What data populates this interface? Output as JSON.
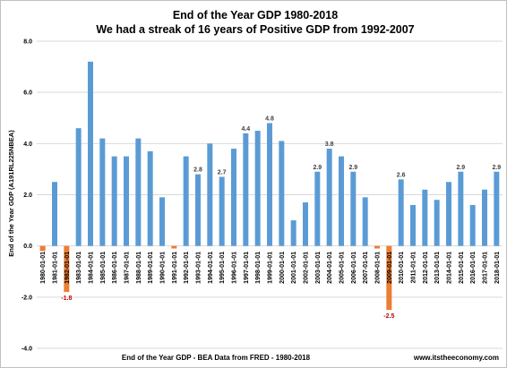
{
  "chart_data": {
    "type": "bar",
    "title": "End of the Year GDP 1980-2018",
    "subtitle": "We had a streak of 16 years of Positive GDP from 1992-2007",
    "ylabel": "End of the Year GDP (A191RL225NBEA)",
    "xlabel": "End of the Year GDP - BEA Data from FRED - 1980-2018",
    "footer_right": "www.itstheeconomy.com",
    "ylim": [
      -4.0,
      8.0
    ],
    "yticks": [
      "8.0",
      "6.0",
      "4.0",
      "2.0",
      "0.0",
      "-2.0",
      "-4.0"
    ],
    "grid": true,
    "legend": "none",
    "colors": {
      "positive": "#5b9bd5",
      "negative": "#ed7d31",
      "negative_label": "#c00000",
      "grid": "#d9d9d9"
    },
    "categories": [
      "1980-01-01",
      "1981-01-01",
      "1982-01-01",
      "1983-01-01",
      "1984-01-01",
      "1985-01-01",
      "1986-01-01",
      "1987-01-01",
      "1988-01-01",
      "1989-01-01",
      "1990-01-01",
      "1991-01-01",
      "1992-01-01",
      "1993-01-01",
      "1994-01-01",
      "1995-01-01",
      "1996-01-01",
      "1997-01-01",
      "1998-01-01",
      "1999-01-01",
      "2000-01-01",
      "2001-01-01",
      "2002-01-01",
      "2003-01-01",
      "2004-01-01",
      "2005-01-01",
      "2006-01-01",
      "2007-01-01",
      "2008-01-01",
      "2009-01-01",
      "2010-01-01",
      "2011-01-01",
      "2012-01-01",
      "2013-01-01",
      "2014-01-01",
      "2015-01-01",
      "2016-01-01",
      "2017-01-01",
      "2018-01-01"
    ],
    "values": [
      -0.2,
      2.5,
      -1.8,
      4.6,
      7.2,
      4.2,
      3.5,
      3.5,
      4.2,
      3.7,
      1.9,
      -0.1,
      3.5,
      2.8,
      4.0,
      2.7,
      3.8,
      4.4,
      4.5,
      4.8,
      4.1,
      1.0,
      1.7,
      2.9,
      3.8,
      3.5,
      2.9,
      1.9,
      -0.1,
      -2.5,
      2.6,
      1.6,
      2.2,
      1.8,
      2.5,
      2.9,
      1.6,
      2.2,
      2.9
    ],
    "data_labels": [
      {
        "index": 2,
        "text": "-1.8"
      },
      {
        "index": 13,
        "text": "2.8"
      },
      {
        "index": 15,
        "text": "2.7"
      },
      {
        "index": 17,
        "text": "4.4"
      },
      {
        "index": 19,
        "text": "4.8"
      },
      {
        "index": 23,
        "text": "2.9"
      },
      {
        "index": 24,
        "text": "3.8"
      },
      {
        "index": 26,
        "text": "2.9"
      },
      {
        "index": 29,
        "text": "-2.5"
      },
      {
        "index": 30,
        "text": "2.6"
      },
      {
        "index": 35,
        "text": "2.9"
      },
      {
        "index": 38,
        "text": "2.9"
      }
    ]
  }
}
